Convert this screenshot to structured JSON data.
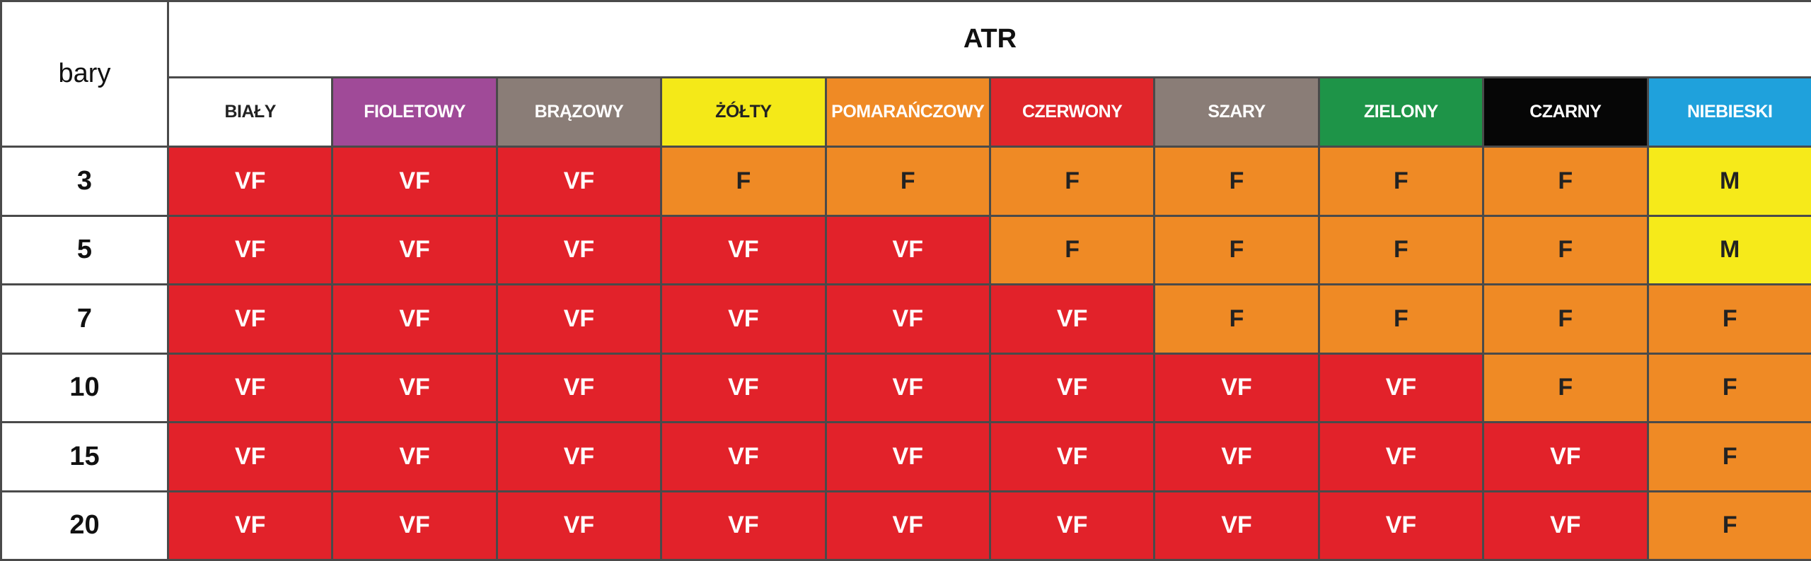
{
  "table": {
    "corner_label": "bary",
    "group_label": "ATR",
    "columns": [
      {
        "label": "BIAŁY",
        "bg": "#ffffff",
        "fg": "#222222"
      },
      {
        "label": "FIOLETOWY",
        "bg": "#a04a98",
        "fg": "#ffffff"
      },
      {
        "label": "BRĄZOWY",
        "bg": "#8a7d77",
        "fg": "#ffffff"
      },
      {
        "label": "ŻÓŁTY",
        "bg": "#f4e918",
        "fg": "#222222"
      },
      {
        "label": "POMARAŃCZOWY",
        "bg": "#ef8a25",
        "fg": "#ffffff"
      },
      {
        "label": "CZERWONY",
        "bg": "#e0262b",
        "fg": "#ffffff"
      },
      {
        "label": "SZARY",
        "bg": "#8a7d77",
        "fg": "#ffffff"
      },
      {
        "label": "ZIELONY",
        "bg": "#1e9448",
        "fg": "#ffffff"
      },
      {
        "label": "CZARNY",
        "bg": "#060606",
        "fg": "#ffffff"
      },
      {
        "label": "NIEBIESKI",
        "bg": "#1fa1dc",
        "fg": "#ffffff"
      }
    ],
    "rows": [
      {
        "label": "3",
        "values": [
          "VF",
          "VF",
          "VF",
          "F",
          "F",
          "F",
          "F",
          "F",
          "F",
          "M"
        ]
      },
      {
        "label": "5",
        "values": [
          "VF",
          "VF",
          "VF",
          "VF",
          "VF",
          "F",
          "F",
          "F",
          "F",
          "M"
        ]
      },
      {
        "label": "7",
        "values": [
          "VF",
          "VF",
          "VF",
          "VF",
          "VF",
          "VF",
          "F",
          "F",
          "F",
          "F"
        ]
      },
      {
        "label": "10",
        "values": [
          "VF",
          "VF",
          "VF",
          "VF",
          "VF",
          "VF",
          "VF",
          "VF",
          "F",
          "F"
        ]
      },
      {
        "label": "15",
        "values": [
          "VF",
          "VF",
          "VF",
          "VF",
          "VF",
          "VF",
          "VF",
          "VF",
          "VF",
          "F"
        ]
      },
      {
        "label": "20",
        "values": [
          "VF",
          "VF",
          "VF",
          "VF",
          "VF",
          "VF",
          "VF",
          "VF",
          "VF",
          "F"
        ]
      }
    ],
    "value_colors": {
      "VF": {
        "bg": "#e2222a",
        "fg": "#ffffff"
      },
      "F": {
        "bg": "#ef8a25",
        "fg": "#222222"
      },
      "M": {
        "bg": "#f6ea1a",
        "fg": "#222222"
      }
    }
  }
}
